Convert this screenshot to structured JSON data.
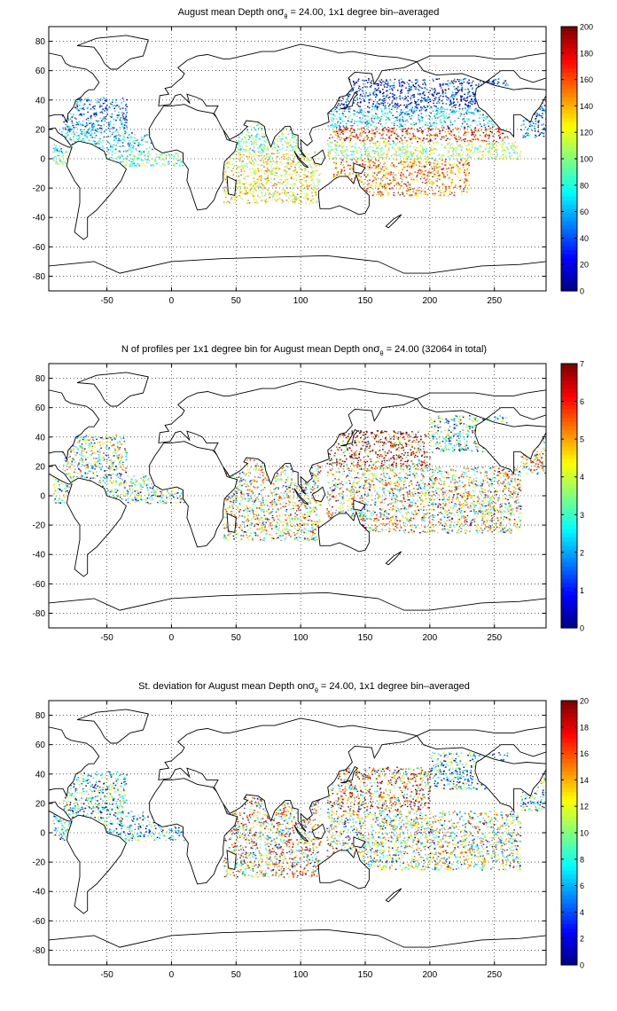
{
  "chart_data": [
    {
      "type": "heatmap",
      "title": "August mean Depth on σθ = 24.00, 1x1 degree bin–averaged",
      "title_parts": {
        "pre": "August mean Depth on",
        "sigma": "σ",
        "sub": "θ",
        "post": " = 24.00, 1x1 degree bin–averaged"
      },
      "xlim": [
        -95,
        290
      ],
      "ylim": [
        -90,
        90
      ],
      "x_ticks": [
        "-50",
        "0",
        "50",
        "100",
        "150",
        "200",
        "250"
      ],
      "x_tick_values": [
        -50,
        0,
        50,
        100,
        150,
        200,
        250
      ],
      "y_ticks": [
        "80",
        "60",
        "40",
        "20",
        "0",
        "-20",
        "-40",
        "-60",
        "-80"
      ],
      "y_tick_values": [
        80,
        60,
        40,
        20,
        0,
        -20,
        -40,
        -60,
        -80
      ],
      "colorbar": {
        "min": 0,
        "max": 200,
        "ticks": [
          "0",
          "20",
          "40",
          "60",
          "80",
          "100",
          "120",
          "140",
          "160",
          "180",
          "200"
        ],
        "tick_values": [
          0,
          20,
          40,
          60,
          80,
          100,
          120,
          140,
          160,
          180,
          200
        ],
        "colormap": "jet"
      },
      "grid": true,
      "data_regions": [
        {
          "lon": [
            -85,
            -35
          ],
          "lat": [
            20,
            42
          ],
          "value": 45
        },
        {
          "lon": [
            -92,
            -15
          ],
          "lat": [
            5,
            20
          ],
          "value": 70
        },
        {
          "lon": [
            -92,
            10
          ],
          "lat": [
            -5,
            5
          ],
          "value": 90
        },
        {
          "lon": [
            40,
            115
          ],
          "lat": [
            -30,
            5
          ],
          "value": 125
        },
        {
          "lon": [
            50,
            100
          ],
          "lat": [
            5,
            25
          ],
          "value": 90
        },
        {
          "lon": [
            120,
            260
          ],
          "lat": [
            35,
            55
          ],
          "value": 30
        },
        {
          "lon": [
            120,
            250
          ],
          "lat": [
            22,
            35
          ],
          "value": 65
        },
        {
          "lon": [
            120,
            260
          ],
          "lat": [
            12,
            22
          ],
          "value": 170
        },
        {
          "lon": [
            120,
            270
          ],
          "lat": [
            0,
            12
          ],
          "value": 110
        },
        {
          "lon": [
            125,
            230
          ],
          "lat": [
            -25,
            0
          ],
          "value": 150
        },
        {
          "lon": [
            270,
            290
          ],
          "lat": [
            15,
            40
          ],
          "value": 40
        }
      ]
    },
    {
      "type": "heatmap",
      "title": "N of profiles per 1x1 degree bin for August mean Depth on σθ = 24.00 (32064 in total)",
      "title_parts": {
        "pre": "N of profiles per 1x1 degree bin for August mean Depth on",
        "sigma": "σ",
        "sub": "θ",
        "post": " = 24.00 (32064 in total)"
      },
      "xlim": [
        -95,
        290
      ],
      "ylim": [
        -90,
        90
      ],
      "x_ticks": [
        "-50",
        "0",
        "50",
        "100",
        "150",
        "200",
        "250"
      ],
      "x_tick_values": [
        -50,
        0,
        50,
        100,
        150,
        200,
        250
      ],
      "y_ticks": [
        "80",
        "60",
        "40",
        "20",
        "0",
        "-20",
        "-40",
        "-60",
        "-80"
      ],
      "y_tick_values": [
        80,
        60,
        40,
        20,
        0,
        -20,
        -40,
        -60,
        -80
      ],
      "colorbar": {
        "min": 0,
        "max": 7,
        "ticks": [
          "0",
          "1",
          "2",
          "3",
          "4",
          "5",
          "6",
          "7"
        ],
        "tick_values": [
          0,
          1,
          2,
          3,
          4,
          5,
          6,
          7
        ],
        "colormap": "jet"
      },
      "grid": true,
      "data_regions": [
        {
          "lon": [
            -85,
            -35
          ],
          "lat": [
            15,
            42
          ],
          "value": 3
        },
        {
          "lon": [
            -92,
            10
          ],
          "lat": [
            -5,
            15
          ],
          "value": 2.5
        },
        {
          "lon": [
            40,
            115
          ],
          "lat": [
            -30,
            25
          ],
          "value": 3.5
        },
        {
          "lon": [
            120,
            200
          ],
          "lat": [
            20,
            45
          ],
          "value": 5.5
        },
        {
          "lon": [
            120,
            270
          ],
          "lat": [
            -25,
            20
          ],
          "value": 3.5
        },
        {
          "lon": [
            200,
            260
          ],
          "lat": [
            30,
            55
          ],
          "value": 2
        },
        {
          "lon": [
            270,
            290
          ],
          "lat": [
            15,
            40
          ],
          "value": 4
        }
      ]
    },
    {
      "type": "heatmap",
      "title": "St. deviation for August mean Depth on σθ = 24.00, 1x1 degree bin–averaged",
      "title_parts": {
        "pre": "St. deviation for August mean Depth on",
        "sigma": "σ",
        "sub": "θ",
        "post": " = 24.00, 1x1 degree bin–averaged"
      },
      "xlim": [
        -95,
        290
      ],
      "ylim": [
        -90,
        90
      ],
      "x_ticks": [
        "-50",
        "0",
        "50",
        "100",
        "150",
        "200",
        "250"
      ],
      "x_tick_values": [
        -50,
        0,
        50,
        100,
        150,
        200,
        250
      ],
      "y_ticks": [
        "80",
        "60",
        "40",
        "20",
        "0",
        "-20",
        "-40",
        "-60",
        "-80"
      ],
      "y_tick_values": [
        80,
        60,
        40,
        20,
        0,
        -20,
        -40,
        -60,
        -80
      ],
      "colorbar": {
        "min": 0,
        "max": 20,
        "ticks": [
          "0",
          "2",
          "4",
          "6",
          "8",
          "10",
          "12",
          "14",
          "16",
          "18",
          "20"
        ],
        "tick_values": [
          0,
          2,
          4,
          6,
          8,
          10,
          12,
          14,
          16,
          18,
          20
        ],
        "colormap": "jet"
      },
      "grid": true,
      "data_regions": [
        {
          "lon": [
            -85,
            -35
          ],
          "lat": [
            15,
            42
          ],
          "value": 5
        },
        {
          "lon": [
            -92,
            10
          ],
          "lat": [
            -5,
            15
          ],
          "value": 5
        },
        {
          "lon": [
            40,
            115
          ],
          "lat": [
            -30,
            25
          ],
          "value": 11
        },
        {
          "lon": [
            120,
            200
          ],
          "lat": [
            15,
            45
          ],
          "value": 13
        },
        {
          "lon": [
            120,
            270
          ],
          "lat": [
            -25,
            15
          ],
          "value": 9
        },
        {
          "lon": [
            200,
            260
          ],
          "lat": [
            30,
            55
          ],
          "value": 5
        },
        {
          "lon": [
            270,
            290
          ],
          "lat": [
            15,
            40
          ],
          "value": 6
        }
      ]
    }
  ]
}
